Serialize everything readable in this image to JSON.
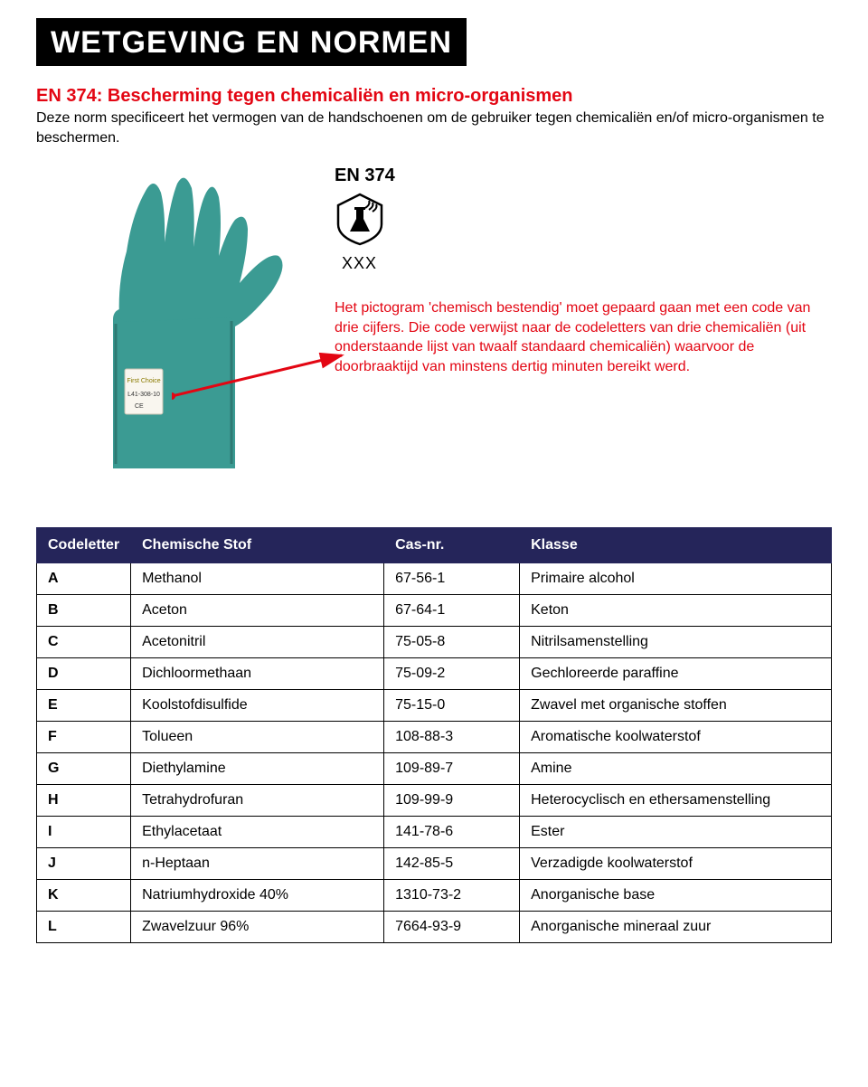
{
  "header": {
    "title": "WETGEVING EN NORMEN",
    "title_bg": "#000000",
    "title_color": "#ffffff"
  },
  "section": {
    "subtitle": "EN 374: Bescherming tegen chemicaliën en micro-organismen",
    "subtitle_color": "#e30613",
    "intro": "Deze norm specificeert het vermogen van de handschoenen om de gebruiker tegen chemicaliën en/of micro-organismen te beschermen."
  },
  "figure": {
    "standard_label": "EN 374",
    "code_placeholder": "XXX",
    "explain": "Het pictogram 'chemisch bestendig' moet gepaard gaan met een code van drie cijfers. Die code verwijst naar de codeletters van drie chemicaliën (uit onderstaande lijst van twaalf standaard chemicaliën) waarvoor de doorbraaktijd van minstens dertig minuten bereikt werd.",
    "explain_color": "#e30613",
    "arrow_color": "#e30613",
    "glove_color": "#3b9b93",
    "glove_shadow": "#2e7a73",
    "pictogram_stroke": "#000000",
    "pictogram_fill": "#000000"
  },
  "table": {
    "type": "table",
    "header_bg": "#25255a",
    "header_color": "#ffffff",
    "border_color": "#000000",
    "columns": [
      "Codeletter",
      "Chemische Stof",
      "Cas-nr.",
      "Klasse"
    ],
    "rows": [
      [
        "A",
        "Methanol",
        "67-56-1",
        "Primaire alcohol"
      ],
      [
        "B",
        "Aceton",
        "67-64-1",
        "Keton"
      ],
      [
        "C",
        "Acetonitril",
        "75-05-8",
        "Nitrilsamenstelling"
      ],
      [
        "D",
        "Dichloormethaan",
        "75-09-2",
        "Gechloreerde paraffine"
      ],
      [
        "E",
        "Koolstofdisulfide",
        "75-15-0",
        "Zwavel met organische stoffen"
      ],
      [
        "F",
        "Tolueen",
        "108-88-3",
        "Aromatische koolwaterstof"
      ],
      [
        "G",
        "Diethylamine",
        "109-89-7",
        "Amine"
      ],
      [
        "H",
        "Tetrahydrofuran",
        "109-99-9",
        "Heterocyclisch en ethersamenstelling"
      ],
      [
        "I",
        "Ethylacetaat",
        "141-78-6",
        "Ester"
      ],
      [
        "J",
        "n-Heptaan",
        "142-85-5",
        "Verzadigde koolwaterstof"
      ],
      [
        "K",
        "Natriumhydroxide 40%",
        "1310-73-2",
        "Anorganische base"
      ],
      [
        "L",
        "Zwavelzuur 96%",
        "7664-93-9",
        "Anorganische mineraal zuur"
      ]
    ]
  }
}
